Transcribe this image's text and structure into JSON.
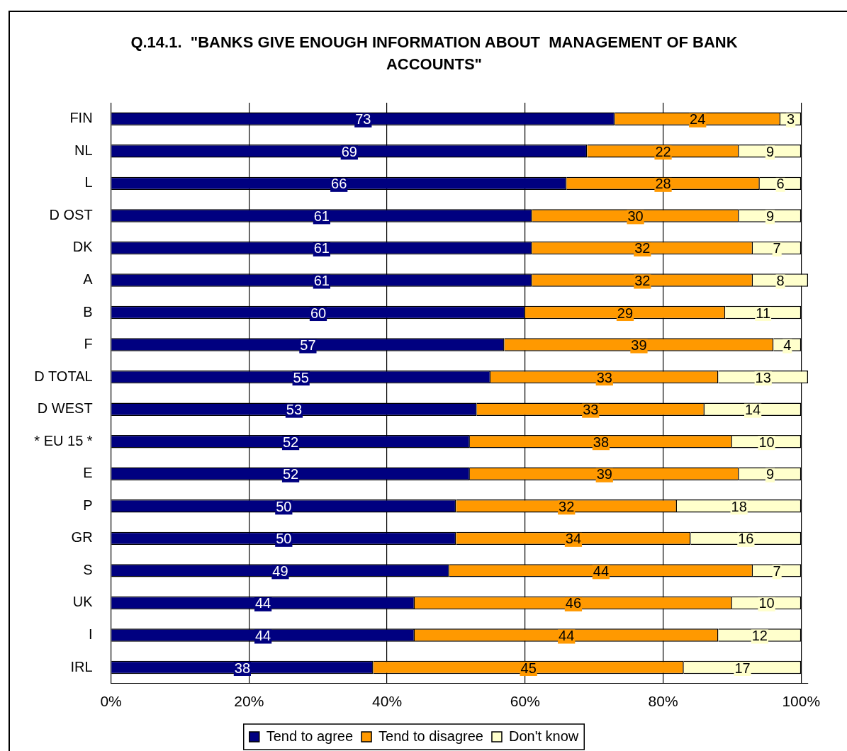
{
  "chart_data": {
    "type": "bar",
    "orientation": "horizontal",
    "stacked": true,
    "title": "Q.14.1.  \"BANKS GIVE ENOUGH INFORMATION ABOUT  MANAGEMENT OF BANK ACCOUNTS\"",
    "categories": [
      "FIN",
      "NL",
      "L",
      "D OST",
      "DK",
      "A",
      "B",
      "F",
      "D TOTAL",
      "D WEST",
      "* EU 15 *",
      "E",
      "P",
      "GR",
      "S",
      "UK",
      "I",
      "IRL"
    ],
    "series": [
      {
        "name": "Tend to agree",
        "color": "#000080",
        "values": [
          73,
          69,
          66,
          61,
          61,
          61,
          60,
          57,
          55,
          53,
          52,
          52,
          50,
          50,
          49,
          44,
          44,
          38
        ]
      },
      {
        "name": "Tend to disagree",
        "color": "#ff9900",
        "values": [
          24,
          22,
          28,
          30,
          32,
          32,
          29,
          39,
          33,
          33,
          38,
          39,
          32,
          34,
          44,
          46,
          44,
          45
        ]
      },
      {
        "name": "Don't know",
        "color": "#ffffcc",
        "values": [
          3,
          9,
          6,
          9,
          7,
          8,
          11,
          4,
          13,
          14,
          10,
          9,
          18,
          16,
          7,
          10,
          12,
          17
        ]
      }
    ],
    "xlim": [
      0,
      101
    ],
    "xticks": [
      {
        "value": 0,
        "label": "0%"
      },
      {
        "value": 20,
        "label": "20%"
      },
      {
        "value": 40,
        "label": "40%"
      },
      {
        "value": 60,
        "label": "60%"
      },
      {
        "value": 80,
        "label": "80%"
      },
      {
        "value": 100,
        "label": "100%"
      }
    ],
    "grid": "x",
    "legend": "bottom",
    "data_labels": true
  }
}
